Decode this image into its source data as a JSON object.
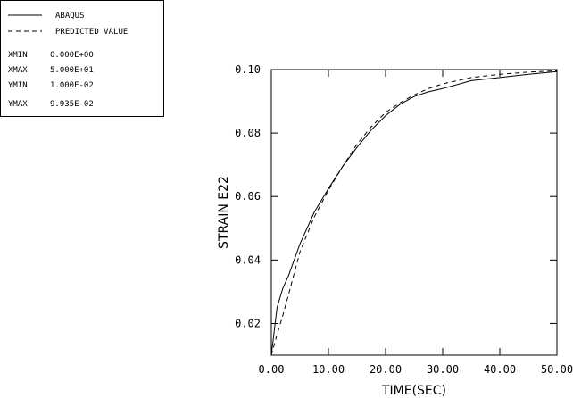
{
  "chart_data": {
    "type": "line",
    "xlabel": "TIME(SEC)",
    "ylabel": "STRAIN  E22",
    "xlim": [
      0,
      50
    ],
    "ylim": [
      0.01,
      0.1
    ],
    "grid": false,
    "legend_placement": "top-left",
    "x_ticks": [
      {
        "value": 0,
        "label": "0.00"
      },
      {
        "value": 10,
        "label": "10.00"
      },
      {
        "value": 20,
        "label": "20.00"
      },
      {
        "value": 30,
        "label": "30.00"
      },
      {
        "value": 40,
        "label": "40.00"
      },
      {
        "value": 50,
        "label": "50.00"
      }
    ],
    "y_ticks": [
      {
        "value": 0.02,
        "label": "0.02"
      },
      {
        "value": 0.04,
        "label": "0.04"
      },
      {
        "value": 0.06,
        "label": "0.06"
      },
      {
        "value": 0.08,
        "label": "0.08"
      },
      {
        "value": 0.1,
        "label": "0.10"
      }
    ],
    "series": [
      {
        "name": "ABAQUS",
        "style": "solid",
        "x": [
          0,
          1,
          2,
          3,
          5,
          7.5,
          10,
          12.5,
          15,
          17.5,
          20,
          22.5,
          25,
          27.5,
          30,
          35,
          40,
          45,
          50
        ],
        "y": [
          0.01,
          0.025,
          0.031,
          0.035,
          0.045,
          0.055,
          0.0625,
          0.0695,
          0.0755,
          0.081,
          0.0855,
          0.089,
          0.0915,
          0.093,
          0.094,
          0.0965,
          0.0975,
          0.0985,
          0.09935
        ]
      },
      {
        "name": "PREDICTED VALUE",
        "style": "dashed",
        "x": [
          0,
          1,
          2,
          3,
          5,
          7.5,
          10,
          12.5,
          15,
          17.5,
          20,
          22.5,
          25,
          27.5,
          30,
          35,
          40,
          45,
          50
        ],
        "y": [
          0.01,
          0.0165,
          0.0225,
          0.029,
          0.0425,
          0.0535,
          0.062,
          0.0695,
          0.0765,
          0.082,
          0.0865,
          0.0895,
          0.092,
          0.094,
          0.0955,
          0.0975,
          0.0985,
          0.0992,
          0.0996
        ]
      }
    ]
  },
  "legend": {
    "entries": [
      {
        "label": "ABAQUS",
        "style": "solid"
      },
      {
        "label": "PREDICTED VALUE",
        "style": "dashed"
      }
    ],
    "stats": [
      {
        "key": "XMIN",
        "value": "0.000E+00"
      },
      {
        "key": "XMAX",
        "value": "5.000E+01"
      },
      {
        "key": "YMIN",
        "value": "1.000E-02"
      },
      {
        "key": "YMAX",
        "value": "9.935E-02"
      }
    ]
  }
}
